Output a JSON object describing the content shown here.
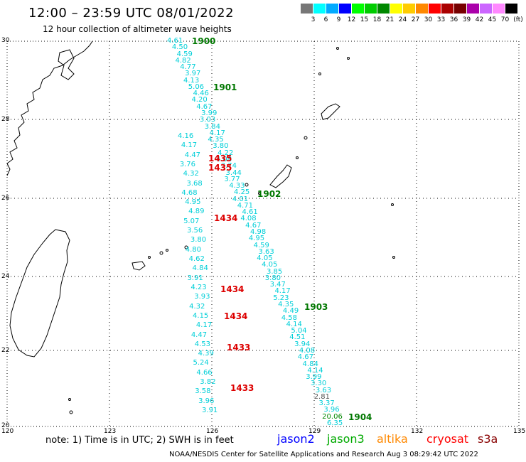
{
  "header": {
    "title": "12:00 – 23:59 UTC 08/01/2022",
    "subtitle": "12 hour collection of altimeter wave heights"
  },
  "scale": {
    "unit": "(ft)",
    "colors": [
      "#777777",
      "#00ffff",
      "#00aaff",
      "#0000ff",
      "#00ff00",
      "#00cc00",
      "#008800",
      "#ffff00",
      "#ffcc00",
      "#ff8800",
      "#ff0000",
      "#aa0000",
      "#770000",
      "#aa00aa",
      "#cc66ff",
      "#ff88ff",
      "#000000"
    ],
    "labels": [
      "3",
      "6",
      "9",
      "12",
      "15",
      "18",
      "21",
      "24",
      "27",
      "30",
      "33",
      "36",
      "39",
      "42",
      "45",
      "70"
    ]
  },
  "map_axes": {
    "lon_labels": [
      "120",
      "123",
      "126",
      "129",
      "132",
      "135"
    ],
    "lat_labels": [
      "30",
      "28",
      "26",
      "24",
      "22",
      "20"
    ]
  },
  "tracks": {
    "track_a": [
      "4.61",
      "4.50",
      "4.59",
      "4.82",
      "4.77",
      "3.97",
      "4.13",
      "5.06",
      "4.46",
      "4.20",
      "4.67",
      "3.99",
      "3.03",
      "3.84",
      "4.17",
      "4.35",
      "3.80",
      "4.22",
      "4.08",
      "3.74",
      "3.44",
      "3.77",
      "4.33",
      "4.25",
      "4.01",
      "4.71",
      "4.61",
      "4.08",
      "4.67",
      "4.98",
      "4.95",
      "4.59",
      "3.63",
      "4.05",
      "4.05",
      "3.85",
      "3.80",
      "3.47",
      "4.17",
      "5.23",
      "4.35",
      "4.49",
      "4.58",
      "4.14",
      "5.04",
      "4.51",
      "3.94",
      "4.08",
      "4.67",
      "4.84",
      "4.14",
      "3.99",
      "3.30",
      "3.63",
      "2.81",
      "3.37",
      "3.96",
      "20.06",
      "6.35"
    ],
    "track_b": [
      "4.16",
      "4.17",
      "4.47",
      "3.76",
      "4.32",
      "3.68",
      "4.68",
      "4.95",
      "4.89",
      "5.07",
      "3.56",
      "3.80",
      "4.80",
      "4.62",
      "4.84",
      "3.91",
      "4.23",
      "3.93",
      "4.32",
      "4.15",
      "4.17",
      "4.47",
      "4.53",
      "4.39",
      "5.24",
      "4.66",
      "3.82",
      "3.58",
      "3.96",
      "3.91"
    ]
  },
  "time_labels": {
    "green": [
      "1900",
      "1901",
      "1902",
      "1903",
      "1904"
    ],
    "red": [
      "1435",
      "1435",
      "1434",
      "1434",
      "1434",
      "1433",
      "1433"
    ]
  },
  "footer": {
    "note": "note: 1) Time is in UTC; 2) SWH is in feet",
    "satellites": [
      {
        "name": "jason2",
        "color": "#0000ff"
      },
      {
        "name": "jason3",
        "color": "#00aa00"
      },
      {
        "name": "altika",
        "color": "#ff8800"
      },
      {
        "name": "cryosat",
        "color": "#ff0000"
      },
      {
        "name": "s3a",
        "color": "#880000"
      }
    ],
    "credit": "NOAA/NESDIS Center for Satellite Applications and Research   Aug  3 08:29:42 UTC 2022"
  }
}
